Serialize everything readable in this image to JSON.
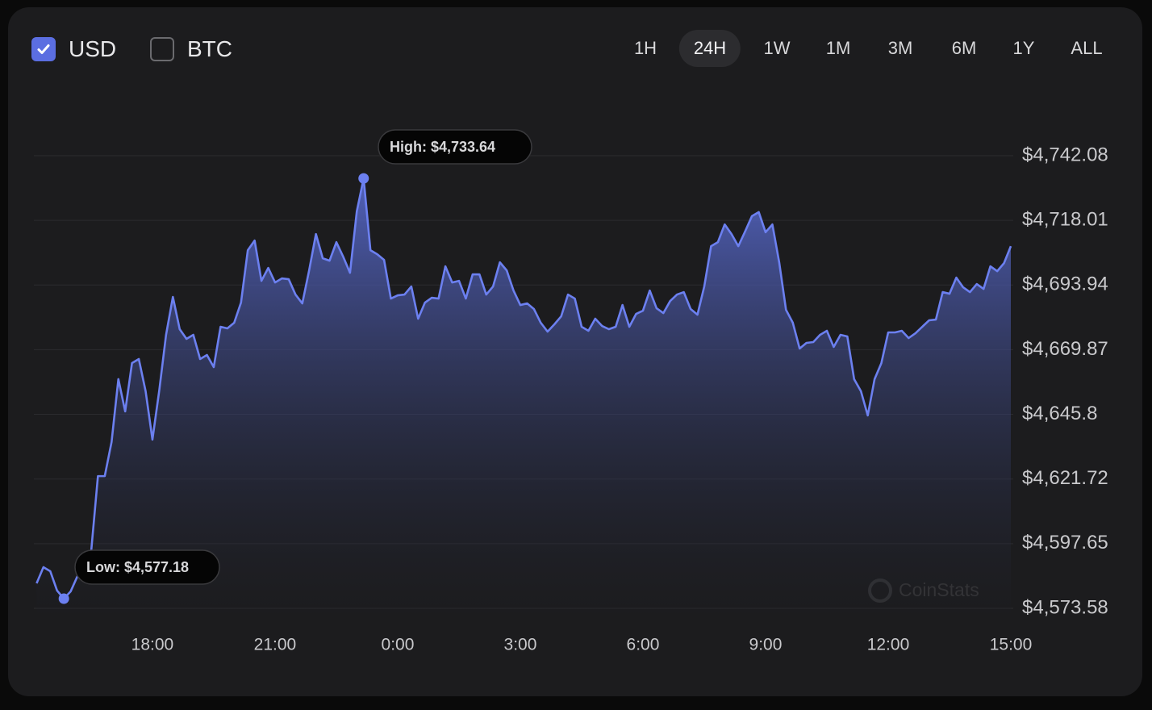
{
  "controls": {
    "currencies": [
      {
        "label": "USD",
        "checked": true
      },
      {
        "label": "BTC",
        "checked": false
      }
    ],
    "ranges": [
      "1H",
      "24H",
      "1W",
      "1M",
      "3M",
      "6M",
      "1Y",
      "ALL"
    ],
    "active_range": "24H"
  },
  "chart_data": {
    "type": "area",
    "color": "#6c80f0",
    "grid": true,
    "x": [
      "15:10",
      "15:20",
      "15:30",
      "15:40",
      "15:50",
      "16:00",
      "16:10",
      "16:20",
      "16:30",
      "16:40",
      "16:50",
      "17:00",
      "17:10",
      "17:20",
      "17:30",
      "17:40",
      "17:50",
      "18:00",
      "18:10",
      "18:20",
      "18:30",
      "18:40",
      "18:50",
      "19:00",
      "19:10",
      "19:20",
      "19:30",
      "19:40",
      "19:50",
      "20:00",
      "20:10",
      "20:20",
      "20:30",
      "20:40",
      "20:50",
      "21:00",
      "21:10",
      "21:20",
      "21:30",
      "21:40",
      "21:50",
      "22:00",
      "22:10",
      "22:20",
      "22:30",
      "22:40",
      "22:50",
      "23:00",
      "23:10",
      "23:20",
      "23:30",
      "23:40",
      "23:50",
      "0:00",
      "0:10",
      "0:20",
      "0:30",
      "0:40",
      "0:50",
      "1:00",
      "1:10",
      "1:20",
      "1:30",
      "1:40",
      "1:50",
      "2:00",
      "2:10",
      "2:20",
      "2:30",
      "2:40",
      "2:50",
      "3:00",
      "3:10",
      "3:20",
      "3:30",
      "3:40",
      "3:50",
      "4:00",
      "4:10",
      "4:20",
      "4:30",
      "4:40",
      "4:50",
      "5:00",
      "5:10",
      "5:20",
      "5:30",
      "5:40",
      "5:50",
      "6:00",
      "6:10",
      "6:20",
      "6:30",
      "6:40",
      "6:50",
      "7:00",
      "7:10",
      "7:20",
      "7:30",
      "7:40",
      "7:50",
      "8:00",
      "8:10",
      "8:20",
      "8:30",
      "8:40",
      "8:50",
      "9:00",
      "9:10",
      "9:20",
      "9:30",
      "9:40",
      "9:50",
      "10:00",
      "10:10",
      "10:20",
      "10:30",
      "10:40",
      "10:50",
      "11:00",
      "11:10",
      "11:20",
      "11:30",
      "11:40",
      "11:50",
      "12:00",
      "12:10",
      "12:20",
      "12:30",
      "12:40",
      "12:50",
      "13:00",
      "13:10",
      "13:20",
      "13:30",
      "13:40",
      "13:50",
      "14:00",
      "14:10",
      "14:20",
      "14:30",
      "14:40",
      "14:50",
      "15:00"
    ],
    "values": [
      4582.9,
      4588.9,
      4587.4,
      4580.2,
      4577.18,
      4579.9,
      4585.6,
      4594.0,
      4594.6,
      4622.8,
      4622.8,
      4635.5,
      4658.9,
      4646.9,
      4664.9,
      4666.4,
      4654.4,
      4636.4,
      4654.7,
      4675.4,
      4689.5,
      4677.5,
      4673.9,
      4675.4,
      4666.4,
      4667.9,
      4663.4,
      4678.4,
      4677.8,
      4679.9,
      4687.4,
      4706.9,
      4710.5,
      4695.5,
      4700.3,
      4694.9,
      4696.4,
      4696.1,
      4690.4,
      4687.1,
      4699.4,
      4712.9,
      4703.9,
      4703.0,
      4709.9,
      4704.5,
      4698.5,
      4721.4,
      4733.64,
      4706.9,
      4705.4,
      4703.3,
      4688.9,
      4690.1,
      4690.4,
      4693.4,
      4681.4,
      4687.4,
      4689.2,
      4688.9,
      4700.9,
      4694.9,
      4695.5,
      4688.9,
      4697.9,
      4697.9,
      4690.4,
      4693.4,
      4702.4,
      4699.4,
      4691.9,
      4686.5,
      4687.1,
      4685.0,
      4679.9,
      4676.6,
      4679.3,
      4682.3,
      4690.4,
      4688.9,
      4678.4,
      4676.9,
      4681.4,
      4678.7,
      4677.5,
      4678.4,
      4686.5,
      4678.4,
      4683.2,
      4684.4,
      4691.9,
      4685.3,
      4683.5,
      4688.0,
      4690.4,
      4691.3,
      4685.0,
      4682.9,
      4693.4,
      4708.4,
      4709.9,
      4716.5,
      4712.9,
      4708.4,
      4713.9,
      4719.6,
      4721.1,
      4713.6,
      4716.5,
      4702.4,
      4684.7,
      4679.9,
      4670.3,
      4672.4,
      4672.7,
      4675.4,
      4676.9,
      4670.9,
      4675.4,
      4674.8,
      4658.9,
      4654.4,
      4645.4,
      4658.9,
      4664.9,
      4676.3,
      4676.3,
      4676.9,
      4674.2,
      4676.0,
      4678.4,
      4680.8,
      4681.1,
      4691.3,
      4690.7,
      4696.7,
      4693.1,
      4691.3,
      4694.3,
      4692.5,
      4700.9,
      4699.1,
      4702.1,
      4708.4
    ],
    "ylim": [
      4573.58,
      4742.08
    ],
    "yticks": [
      {
        "value": 4742.08,
        "label": "$4,742.08"
      },
      {
        "value": 4718.01,
        "label": "$4,718.01"
      },
      {
        "value": 4693.94,
        "label": "$4,693.94"
      },
      {
        "value": 4669.87,
        "label": "$4,669.87"
      },
      {
        "value": 4645.8,
        "label": "$4,645.8"
      },
      {
        "value": 4621.72,
        "label": "$4,621.72"
      },
      {
        "value": 4597.65,
        "label": "$4,597.65"
      },
      {
        "value": 4573.58,
        "label": "$4,573.58"
      }
    ],
    "xticks": [
      "18:00",
      "21:00",
      "0:00",
      "3:00",
      "6:00",
      "9:00",
      "12:00",
      "15:00"
    ],
    "annotations": {
      "high": "High: $4,733.64",
      "low": "Low: $4,577.18"
    },
    "watermark": "CoinStats"
  }
}
